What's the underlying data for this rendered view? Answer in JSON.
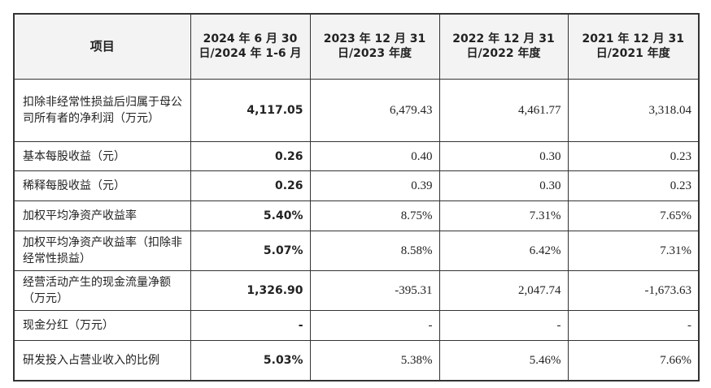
{
  "table": {
    "headers": [
      "项目",
      "2024 年 6 月 30 日/2024 年 1-6 月",
      "2023 年 12 月 31 日/2023 年度",
      "2022 年 12 月 31 日/2022 年度",
      "2021 年 12 月 31 日/2021 年度"
    ],
    "rows": [
      [
        "扣除非经常性损益后归属于母公司所有者的净利润（万元）",
        "4,117.05",
        "6,479.43",
        "4,461.77",
        "3,318.04"
      ],
      [
        "基本每股收益（元）",
        "0.26",
        "0.40",
        "0.30",
        "0.23"
      ],
      [
        "稀释每股收益（元）",
        "0.26",
        "0.39",
        "0.30",
        "0.23"
      ],
      [
        "加权平均净资产收益率",
        "5.40%",
        "8.75%",
        "7.31%",
        "7.65%"
      ],
      [
        "加权平均净资产收益率（扣除非经常性损益）",
        "5.07%",
        "8.58%",
        "6.42%",
        "7.31%"
      ],
      [
        "经营活动产生的现金流量净额（万元）",
        "1,326.90",
        "-395.31",
        "2,047.74",
        "-1,673.63"
      ],
      [
        "现金分红（万元）",
        "-",
        "-",
        "-",
        "-"
      ],
      [
        "研发投入占营业收入的比例",
        "5.03%",
        "5.38%",
        "5.46%",
        "7.66%"
      ]
    ]
  }
}
